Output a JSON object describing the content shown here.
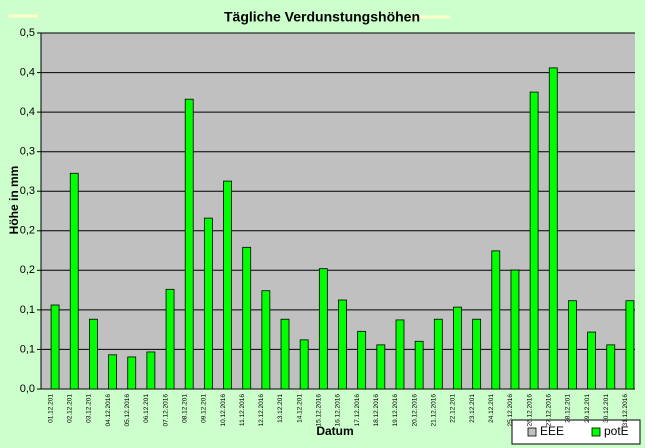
{
  "chart_data": {
    "type": "bar",
    "title": "Tägliche Verdunstungshöhen",
    "y_label": "Höhe in mm",
    "x_label": "Datum",
    "categories": [
      "01.12.201",
      "02.12.201",
      "03.12.201",
      "04.12.2016",
      "05.12.2016",
      "06.12.201",
      "07.12.2016",
      "08.12.201",
      "09.12.201",
      "10.12.2016",
      "11.12.2016",
      "12.12.2016",
      "13.12.201",
      "14.12.201",
      "15.12.2016",
      "16.12.2016",
      "17.12.2016",
      "18.12.2016",
      "19.12.2016",
      "20.12.2016",
      "21.12.2016",
      "22.12.201",
      "23.12.201",
      "24.12.201",
      "25.12.2016",
      "26.12.2016",
      "27.12.2016",
      "28.12.201",
      "29.12.201",
      "30.12.201",
      "31.12.2016"
    ],
    "series": [
      {
        "name": "EEE",
        "color": "#c0c0c0",
        "values": [
          null,
          null,
          null,
          null,
          null,
          null,
          null,
          null,
          null,
          null,
          null,
          null,
          null,
          null,
          null,
          null,
          null,
          null,
          null,
          null,
          null,
          null,
          null,
          null,
          null,
          null,
          null,
          null,
          null,
          null,
          null
        ]
      },
      {
        "name": "potE",
        "color": "#00ff00",
        "values": [
          0.118,
          0.303,
          0.098,
          0.048,
          0.045,
          0.052,
          0.14,
          0.407,
          0.24,
          0.292,
          0.199,
          0.138,
          0.098,
          0.069,
          0.169,
          0.125,
          0.081,
          0.062,
          0.097,
          0.067,
          0.098,
          0.115,
          0.098,
          0.194,
          0.167,
          0.417,
          0.451,
          0.124,
          0.08,
          0.062,
          0.124
        ]
      }
    ],
    "ylim": [
      0,
      0.5
    ],
    "yticks": [
      {
        "value": 0,
        "label": "0,0"
      },
      {
        "value": 0.0556,
        "label": "0,1"
      },
      {
        "value": 0.1111,
        "label": "0,1"
      },
      {
        "value": 0.1667,
        "label": "0,2"
      },
      {
        "value": 0.2222,
        "label": "0,2"
      },
      {
        "value": 0.2778,
        "label": "0,3"
      },
      {
        "value": 0.3333,
        "label": "0,3"
      },
      {
        "value": 0.3889,
        "label": "0,4"
      },
      {
        "value": 0.4444,
        "label": "0,4"
      },
      {
        "value": 0.5,
        "label": "0,5"
      }
    ],
    "grid": true,
    "legend": "bottom-right"
  }
}
